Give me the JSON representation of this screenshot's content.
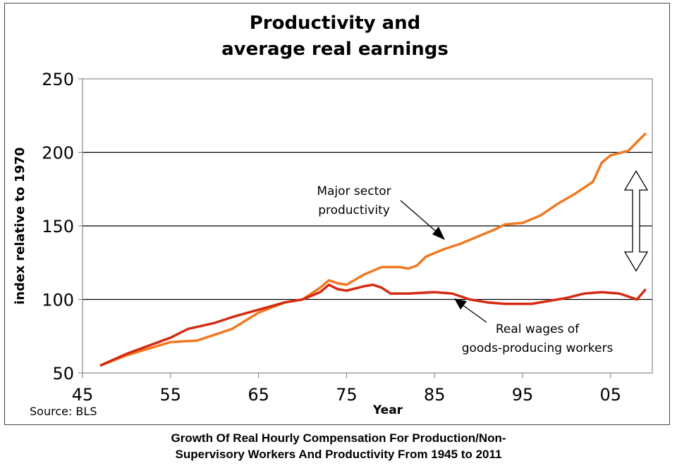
{
  "chart_data": {
    "type": "line",
    "title": "Productivity and average real earnings",
    "title_lines": [
      "Productivity and",
      "average real earnings"
    ],
    "xlabel": "Year",
    "ylabel": "index relative to 1970",
    "ylim": [
      50,
      250
    ],
    "xlim": [
      1945,
      2010
    ],
    "yticks": [
      50,
      100,
      150,
      200,
      250
    ],
    "ytick_labels": [
      "50",
      "100",
      "150",
      "200",
      "250"
    ],
    "xticks": [
      1945,
      1955,
      1965,
      1975,
      1985,
      1995,
      2005
    ],
    "xtick_labels": [
      "45",
      "55",
      "65",
      "75",
      "85",
      "95",
      "05"
    ],
    "grid": "horizontal",
    "source": "Source: BLS",
    "series": [
      {
        "name": "Major sector productivity",
        "color": "#f07820",
        "x": [
          1947,
          1950,
          1955,
          1958,
          1960,
          1962,
          1965,
          1968,
          1970,
          1972,
          1973,
          1974,
          1975,
          1977,
          1979,
          1981,
          1982,
          1983,
          1984,
          1986,
          1988,
          1990,
          1992,
          1993,
          1995,
          1997,
          1999,
          2001,
          2003,
          2004,
          2005,
          2007,
          2008,
          2009
        ],
        "y": [
          55,
          62,
          71,
          72,
          76,
          80,
          91,
          98,
          100,
          108,
          113,
          111,
          110,
          117,
          122,
          122,
          121,
          123,
          129,
          134,
          138,
          143,
          148,
          151,
          152,
          157,
          165,
          172,
          180,
          193,
          198,
          201,
          207,
          213
        ]
      },
      {
        "name": "Real wages of goods-producing workers",
        "color": "#d42a12",
        "x": [
          1947,
          1950,
          1955,
          1957,
          1960,
          1962,
          1965,
          1968,
          1970,
          1972,
          1973,
          1974,
          1975,
          1977,
          1978,
          1979,
          1980,
          1982,
          1985,
          1987,
          1989,
          1991,
          1993,
          1996,
          1998,
          2000,
          2002,
          2004,
          2006,
          2007,
          2008,
          2009
        ],
        "y": [
          55,
          63,
          74,
          80,
          84,
          88,
          93,
          98,
          100,
          105,
          110,
          107,
          106,
          109,
          110,
          108,
          104,
          104,
          105,
          104,
          100,
          98,
          97,
          97,
          99,
          101,
          104,
          105,
          104,
          102,
          100,
          107
        ]
      }
    ],
    "annotations": {
      "productivity_label": [
        "Major sector",
        "productivity"
      ],
      "wages_label": [
        "Real wages of",
        "goods-producing workers"
      ]
    }
  },
  "caption": [
    "Growth Of Real Hourly Compensation For Production/Non-",
    "Supervisory Workers And Productivity From 1945 to 2011"
  ]
}
